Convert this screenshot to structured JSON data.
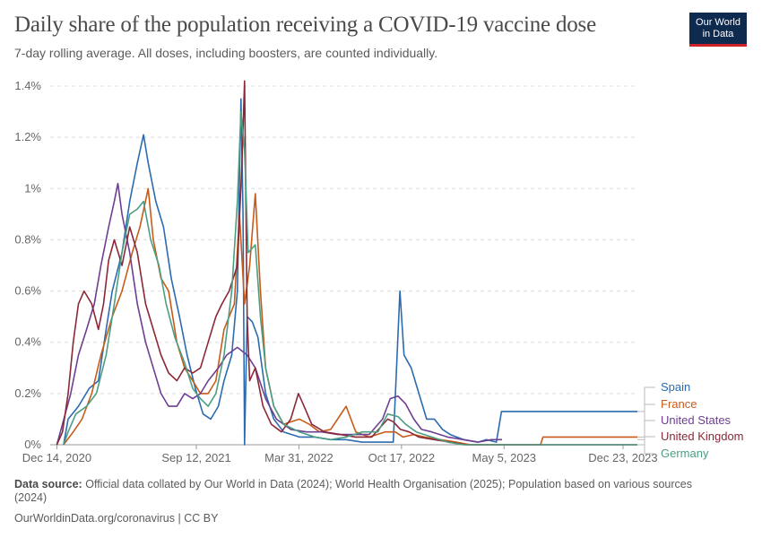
{
  "header": {
    "title": "Daily share of the population receiving a COVID-19 vaccine dose",
    "subtitle": "7-day rolling average. All doses, including boosters, are counted individually.",
    "logo_line1": "Our World",
    "logo_line2": "in Data"
  },
  "footer": {
    "source_label": "Data source:",
    "source_text": "Official data collated by Our World in Data (2024); World Health Organisation (2025); Population based on various sources (2024)",
    "credit": "OurWorldinData.org/coronavirus | CC BY"
  },
  "chart_data": {
    "type": "line",
    "x_domain": [
      "2020-12-01",
      "2024-01-20"
    ],
    "ylim": [
      0,
      1.4
    ],
    "y_ticks": [
      0,
      0.2,
      0.4,
      0.6,
      0.8,
      1.0,
      1.2,
      1.4
    ],
    "y_tick_labels": [
      "0%",
      "0.2%",
      "0.4%",
      "0.6%",
      "0.8%",
      "1%",
      "1.2%",
      "1.4%"
    ],
    "x_ticks": [
      "2020-12-14",
      "2021-09-12",
      "2022-03-31",
      "2022-10-17",
      "2023-05-05",
      "2023-12-23"
    ],
    "x_tick_labels": [
      "Dec 14, 2020",
      "Sep 12, 2021",
      "Mar 31, 2022",
      "Oct 17, 2022",
      "May 5, 2023",
      "Dec 23, 2023"
    ],
    "grid": true,
    "legend_position": "right",
    "series": [
      {
        "name": "Spain",
        "color": "#2c6bb0",
        "points": [
          [
            "2020-12-27",
            0
          ],
          [
            "2021-01-05",
            0.1
          ],
          [
            "2021-01-25",
            0.15
          ],
          [
            "2021-02-15",
            0.22
          ],
          [
            "2021-03-05",
            0.25
          ],
          [
            "2021-03-20",
            0.45
          ],
          [
            "2021-04-01",
            0.6
          ],
          [
            "2021-04-20",
            0.75
          ],
          [
            "2021-05-05",
            0.95
          ],
          [
            "2021-05-20",
            1.1
          ],
          [
            "2021-06-01",
            1.21
          ],
          [
            "2021-06-10",
            1.1
          ],
          [
            "2021-06-25",
            0.95
          ],
          [
            "2021-07-10",
            0.85
          ],
          [
            "2021-07-25",
            0.65
          ],
          [
            "2021-08-10",
            0.5
          ],
          [
            "2021-08-25",
            0.35
          ],
          [
            "2021-09-10",
            0.22
          ],
          [
            "2021-09-25",
            0.12
          ],
          [
            "2021-10-10",
            0.1
          ],
          [
            "2021-10-25",
            0.15
          ],
          [
            "2021-11-05",
            0.25
          ],
          [
            "2021-11-20",
            0.35
          ],
          [
            "2021-12-01",
            0.6
          ],
          [
            "2021-12-08",
            1.35
          ],
          [
            "2021-12-12",
            0.9
          ],
          [
            "2021-12-15",
            0
          ],
          [
            "2021-12-20",
            0.5
          ],
          [
            "2021-12-30",
            0.48
          ],
          [
            "2022-01-10",
            0.42
          ],
          [
            "2022-01-25",
            0.2
          ],
          [
            "2022-02-10",
            0.1
          ],
          [
            "2022-03-01",
            0.05
          ],
          [
            "2022-04-01",
            0.03
          ],
          [
            "2022-05-01",
            0.03
          ],
          [
            "2022-06-01",
            0.02
          ],
          [
            "2022-07-01",
            0.02
          ],
          [
            "2022-08-01",
            0.01
          ],
          [
            "2022-09-01",
            0.01
          ],
          [
            "2022-10-01",
            0.01
          ],
          [
            "2022-10-14",
            0.6
          ],
          [
            "2022-10-22",
            0.35
          ],
          [
            "2022-11-05",
            0.3
          ],
          [
            "2022-11-20",
            0.2
          ],
          [
            "2022-12-05",
            0.1
          ],
          [
            "2022-12-20",
            0.1
          ],
          [
            "2023-01-05",
            0.06
          ],
          [
            "2023-01-20",
            0.04
          ],
          [
            "2023-02-15",
            0.02
          ],
          [
            "2023-03-15",
            0.01
          ],
          [
            "2023-04-01",
            0.02
          ],
          [
            "2023-04-20",
            0.01
          ],
          [
            "2023-04-30",
            0.13
          ],
          [
            "2024-01-20",
            0.13
          ]
        ]
      },
      {
        "name": "France",
        "color": "#c75b1a",
        "points": [
          [
            "2020-12-27",
            0
          ],
          [
            "2021-01-15",
            0.05
          ],
          [
            "2021-02-01",
            0.1
          ],
          [
            "2021-02-20",
            0.2
          ],
          [
            "2021-03-10",
            0.35
          ],
          [
            "2021-04-01",
            0.5
          ],
          [
            "2021-04-20",
            0.6
          ],
          [
            "2021-05-10",
            0.75
          ],
          [
            "2021-05-25",
            0.85
          ],
          [
            "2021-06-10",
            1.0
          ],
          [
            "2021-06-20",
            0.8
          ],
          [
            "2021-07-05",
            0.65
          ],
          [
            "2021-07-20",
            0.6
          ],
          [
            "2021-08-05",
            0.4
          ],
          [
            "2021-08-20",
            0.3
          ],
          [
            "2021-09-05",
            0.25
          ],
          [
            "2021-09-20",
            0.2
          ],
          [
            "2021-10-05",
            0.2
          ],
          [
            "2021-10-20",
            0.25
          ],
          [
            "2021-11-05",
            0.45
          ],
          [
            "2021-11-25",
            0.55
          ],
          [
            "2021-12-05",
            0.9
          ],
          [
            "2021-12-15",
            0.55
          ],
          [
            "2021-12-25",
            0.7
          ],
          [
            "2022-01-05",
            0.98
          ],
          [
            "2022-01-15",
            0.6
          ],
          [
            "2022-01-25",
            0.3
          ],
          [
            "2022-02-10",
            0.15
          ],
          [
            "2022-03-01",
            0.08
          ],
          [
            "2022-04-01",
            0.1
          ],
          [
            "2022-04-20",
            0.08
          ],
          [
            "2022-05-10",
            0.05
          ],
          [
            "2022-06-01",
            0.06
          ],
          [
            "2022-07-01",
            0.15
          ],
          [
            "2022-07-20",
            0.05
          ],
          [
            "2022-08-15",
            0.03
          ],
          [
            "2022-09-15",
            0.05
          ],
          [
            "2022-10-05",
            0.05
          ],
          [
            "2022-10-20",
            0.03
          ],
          [
            "2022-11-10",
            0.04
          ],
          [
            "2022-12-01",
            0.03
          ],
          [
            "2023-01-01",
            0.02
          ],
          [
            "2023-02-01",
            0.01
          ],
          [
            "2023-03-01",
            0
          ],
          [
            "2023-06-01",
            0
          ],
          [
            "2023-07-15",
            0
          ],
          [
            "2023-07-20",
            0.03
          ],
          [
            "2024-01-20",
            0.03
          ]
        ]
      },
      {
        "name": "United States",
        "color": "#6d3e91",
        "points": [
          [
            "2020-12-14",
            0
          ],
          [
            "2020-12-25",
            0.08
          ],
          [
            "2021-01-10",
            0.2
          ],
          [
            "2021-01-25",
            0.35
          ],
          [
            "2021-02-10",
            0.45
          ],
          [
            "2021-02-25",
            0.55
          ],
          [
            "2021-03-10",
            0.7
          ],
          [
            "2021-03-25",
            0.85
          ],
          [
            "2021-04-05",
            0.95
          ],
          [
            "2021-04-12",
            1.02
          ],
          [
            "2021-04-20",
            0.9
          ],
          [
            "2021-05-05",
            0.75
          ],
          [
            "2021-05-20",
            0.55
          ],
          [
            "2021-06-05",
            0.4
          ],
          [
            "2021-06-20",
            0.3
          ],
          [
            "2021-07-05",
            0.2
          ],
          [
            "2021-07-20",
            0.15
          ],
          [
            "2021-08-05",
            0.15
          ],
          [
            "2021-08-20",
            0.2
          ],
          [
            "2021-09-05",
            0.18
          ],
          [
            "2021-09-20",
            0.2
          ],
          [
            "2021-10-05",
            0.25
          ],
          [
            "2021-10-25",
            0.3
          ],
          [
            "2021-11-10",
            0.35
          ],
          [
            "2021-12-01",
            0.38
          ],
          [
            "2021-12-20",
            0.35
          ],
          [
            "2022-01-05",
            0.3
          ],
          [
            "2022-01-25",
            0.18
          ],
          [
            "2022-02-15",
            0.1
          ],
          [
            "2022-03-15",
            0.06
          ],
          [
            "2022-04-15",
            0.05
          ],
          [
            "2022-05-15",
            0.05
          ],
          [
            "2022-06-15",
            0.04
          ],
          [
            "2022-07-15",
            0.04
          ],
          [
            "2022-08-15",
            0.04
          ],
          [
            "2022-09-10",
            0.1
          ],
          [
            "2022-09-25",
            0.18
          ],
          [
            "2022-10-10",
            0.19
          ],
          [
            "2022-10-25",
            0.16
          ],
          [
            "2022-11-10",
            0.1
          ],
          [
            "2022-11-25",
            0.06
          ],
          [
            "2022-12-15",
            0.05
          ],
          [
            "2023-01-15",
            0.03
          ],
          [
            "2023-02-15",
            0.02
          ],
          [
            "2023-03-15",
            0.01
          ],
          [
            "2023-04-10",
            0.02
          ],
          [
            "2023-04-25",
            0.02
          ],
          [
            "2023-05-01",
            0.02
          ]
        ]
      },
      {
        "name": "United Kingdom",
        "color": "#8a2838",
        "points": [
          [
            "2020-12-14",
            0
          ],
          [
            "2020-12-25",
            0.05
          ],
          [
            "2021-01-05",
            0.2
          ],
          [
            "2021-01-15",
            0.4
          ],
          [
            "2021-01-25",
            0.55
          ],
          [
            "2021-02-05",
            0.6
          ],
          [
            "2021-02-20",
            0.55
          ],
          [
            "2021-03-05",
            0.45
          ],
          [
            "2021-03-15",
            0.55
          ],
          [
            "2021-03-25",
            0.72
          ],
          [
            "2021-04-05",
            0.8
          ],
          [
            "2021-04-20",
            0.7
          ],
          [
            "2021-05-05",
            0.85
          ],
          [
            "2021-05-20",
            0.75
          ],
          [
            "2021-06-05",
            0.55
          ],
          [
            "2021-06-20",
            0.45
          ],
          [
            "2021-07-05",
            0.35
          ],
          [
            "2021-07-20",
            0.28
          ],
          [
            "2021-08-05",
            0.25
          ],
          [
            "2021-08-20",
            0.3
          ],
          [
            "2021-09-05",
            0.28
          ],
          [
            "2021-09-20",
            0.3
          ],
          [
            "2021-10-05",
            0.4
          ],
          [
            "2021-10-20",
            0.5
          ],
          [
            "2021-11-01",
            0.55
          ],
          [
            "2021-11-15",
            0.6
          ],
          [
            "2021-12-01",
            0.7
          ],
          [
            "2021-12-10",
            1.1
          ],
          [
            "2021-12-15",
            1.42
          ],
          [
            "2021-12-20",
            0.5
          ],
          [
            "2021-12-25",
            0.25
          ],
          [
            "2022-01-05",
            0.3
          ],
          [
            "2022-01-20",
            0.15
          ],
          [
            "2022-02-05",
            0.08
          ],
          [
            "2022-02-25",
            0.05
          ],
          [
            "2022-03-15",
            0.1
          ],
          [
            "2022-03-30",
            0.2
          ],
          [
            "2022-04-10",
            0.15
          ],
          [
            "2022-04-25",
            0.08
          ],
          [
            "2022-05-20",
            0.05
          ],
          [
            "2022-06-20",
            0.04
          ],
          [
            "2022-07-20",
            0.03
          ],
          [
            "2022-08-20",
            0.03
          ],
          [
            "2022-09-20",
            0.1
          ],
          [
            "2022-10-01",
            0.09
          ],
          [
            "2022-10-15",
            0.06
          ],
          [
            "2022-11-01",
            0.05
          ],
          [
            "2022-11-20",
            0.03
          ],
          [
            "2022-12-20",
            0.02
          ],
          [
            "2023-01-20",
            0.01
          ],
          [
            "2023-02-20",
            0
          ],
          [
            "2024-01-20",
            0
          ]
        ]
      },
      {
        "name": "Germany",
        "color": "#4c9e82",
        "points": [
          [
            "2020-12-27",
            0
          ],
          [
            "2021-01-05",
            0.05
          ],
          [
            "2021-01-20",
            0.12
          ],
          [
            "2021-02-10",
            0.15
          ],
          [
            "2021-03-01",
            0.2
          ],
          [
            "2021-03-20",
            0.35
          ],
          [
            "2021-04-05",
            0.55
          ],
          [
            "2021-04-20",
            0.75
          ],
          [
            "2021-05-05",
            0.9
          ],
          [
            "2021-05-20",
            0.92
          ],
          [
            "2021-06-01",
            0.95
          ],
          [
            "2021-06-15",
            0.8
          ],
          [
            "2021-07-01",
            0.7
          ],
          [
            "2021-07-15",
            0.55
          ],
          [
            "2021-08-01",
            0.42
          ],
          [
            "2021-08-20",
            0.32
          ],
          [
            "2021-09-05",
            0.22
          ],
          [
            "2021-09-20",
            0.18
          ],
          [
            "2021-10-05",
            0.15
          ],
          [
            "2021-10-20",
            0.2
          ],
          [
            "2021-11-05",
            0.35
          ],
          [
            "2021-11-20",
            0.6
          ],
          [
            "2021-12-01",
            0.95
          ],
          [
            "2021-12-08",
            1.3
          ],
          [
            "2021-12-15",
            1.15
          ],
          [
            "2021-12-22",
            0.75
          ],
          [
            "2022-01-05",
            0.78
          ],
          [
            "2022-01-15",
            0.5
          ],
          [
            "2022-01-25",
            0.3
          ],
          [
            "2022-02-10",
            0.15
          ],
          [
            "2022-03-01",
            0.08
          ],
          [
            "2022-04-01",
            0.05
          ],
          [
            "2022-05-01",
            0.03
          ],
          [
            "2022-06-01",
            0.02
          ],
          [
            "2022-07-01",
            0.03
          ],
          [
            "2022-08-01",
            0.05
          ],
          [
            "2022-09-01",
            0.05
          ],
          [
            "2022-09-20",
            0.12
          ],
          [
            "2022-10-10",
            0.11
          ],
          [
            "2022-10-25",
            0.08
          ],
          [
            "2022-11-15",
            0.05
          ],
          [
            "2022-12-15",
            0.03
          ],
          [
            "2023-01-15",
            0.01
          ],
          [
            "2023-02-15",
            0
          ],
          [
            "2024-01-20",
            0
          ]
        ]
      }
    ]
  }
}
